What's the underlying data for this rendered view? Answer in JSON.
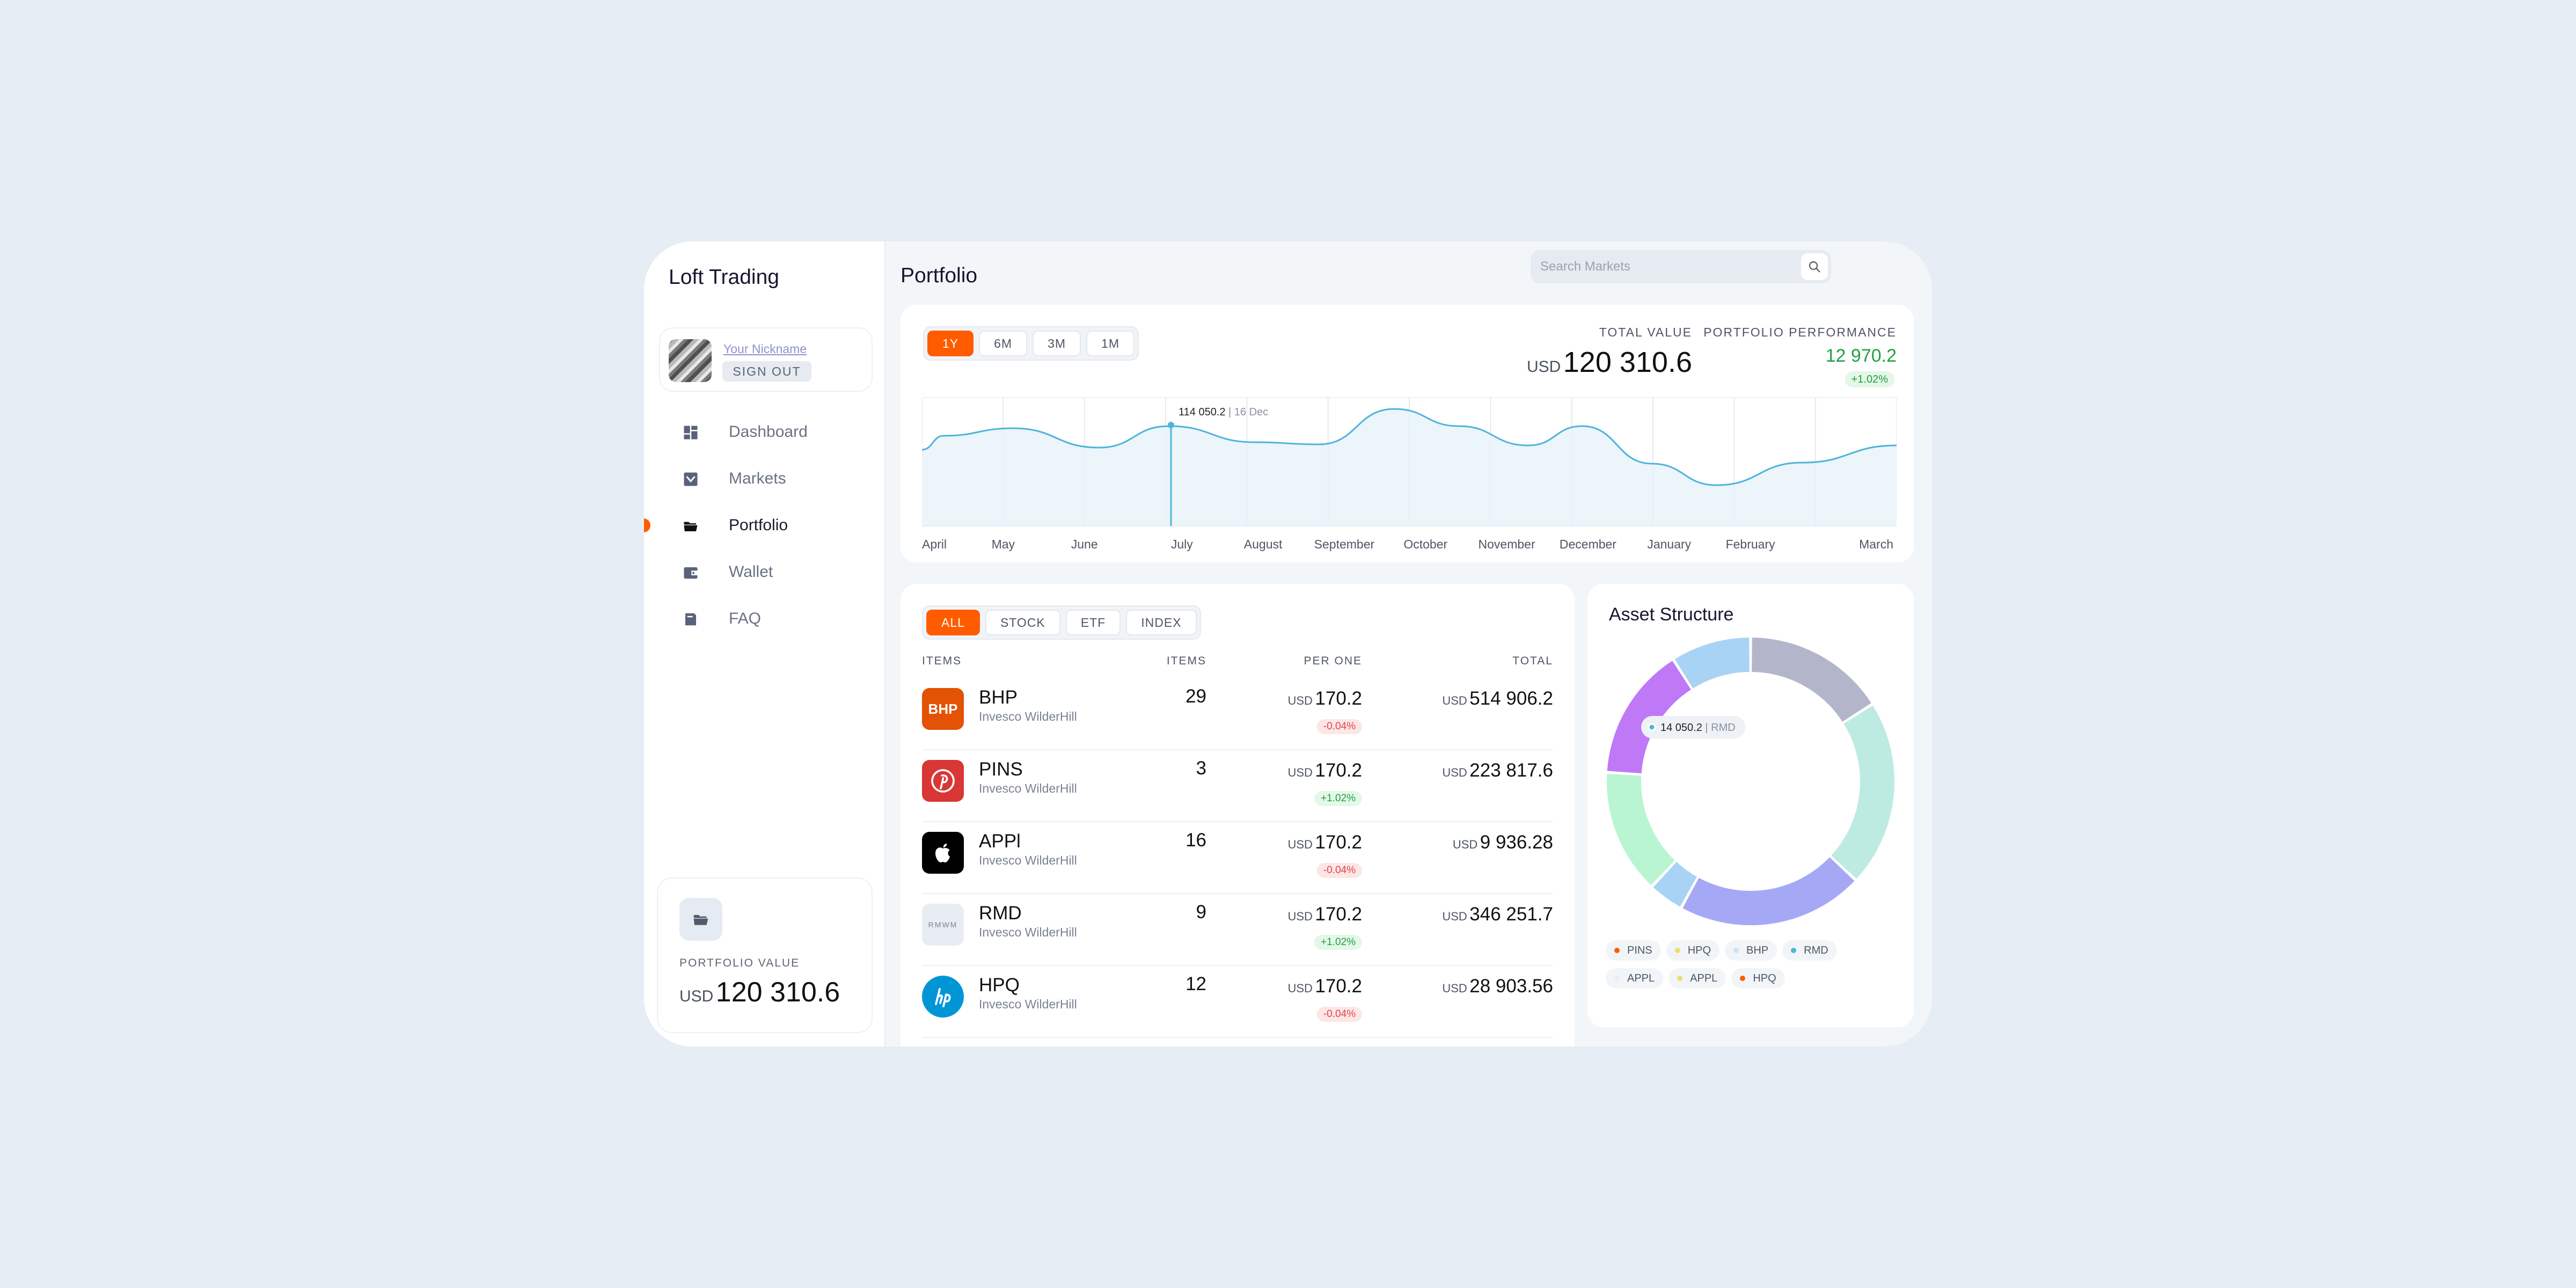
{
  "app": {
    "title": "Loft Trading"
  },
  "profile": {
    "nickname": "Your Nickname",
    "sign_out": "SIGN OUT"
  },
  "nav": {
    "items": [
      {
        "label": "Dashboard",
        "icon": "dashboard-icon"
      },
      {
        "label": "Markets",
        "icon": "markets-icon"
      },
      {
        "label": "Portfolio",
        "icon": "portfolio-icon",
        "active": true
      },
      {
        "label": "Wallet",
        "icon": "wallet-icon"
      },
      {
        "label": "FAQ",
        "icon": "faq-icon"
      }
    ]
  },
  "portfolio_value": {
    "label": "PORTFOLIO VALUE",
    "currency": "USD",
    "value": "120 310.6"
  },
  "page": {
    "title": "Portfolio"
  },
  "search": {
    "placeholder": "Search Markets"
  },
  "period_tabs": {
    "items": [
      "1Y",
      "6M",
      "3M",
      "1M"
    ],
    "active": "1Y"
  },
  "total_value": {
    "label": "TOTAL VALUE",
    "currency": "USD",
    "value": "120 310.6"
  },
  "performance": {
    "label": "PORTFOLIO PERFORMANCE",
    "value": "12 970.2",
    "change": "+1.02%"
  },
  "chart_data": {
    "type": "area",
    "x": [
      "April",
      "May",
      "June",
      "July",
      "August",
      "September",
      "October",
      "November",
      "December",
      "January",
      "February",
      "March"
    ],
    "tooltip": {
      "value": "114 050.2",
      "date": "16 Dec"
    },
    "color": "#4fb3dc",
    "grid": true
  },
  "type_tabs": {
    "items": [
      "ALL",
      "STOCK",
      "ETF",
      "INDEX"
    ],
    "active": "ALL"
  },
  "table": {
    "headers": {
      "items": "ITEMS",
      "count": "ITEMS",
      "per_one": "PER ONE",
      "total": "TOTAL"
    },
    "rows": [
      {
        "symbol": "BHP",
        "name": "Invesco WilderHill",
        "count": "29",
        "currency": "USD",
        "per_one": "170.2",
        "change": "-0.04%",
        "total": "514 906.2",
        "logo_text": "BHP",
        "logo_color": "#e35205"
      },
      {
        "symbol": "PINS",
        "name": "Invesco WilderHill",
        "count": "3",
        "currency": "USD",
        "per_one": "170.2",
        "change": "+1.02%",
        "total": "223 817.6",
        "logo_text": "",
        "logo_color": "#d93636"
      },
      {
        "symbol": "APPl",
        "name": "Invesco WilderHill",
        "count": "16",
        "currency": "USD",
        "per_one": "170.2",
        "change": "-0.04%",
        "total": "9 936.28",
        "logo_text": "",
        "logo_color": "#000000"
      },
      {
        "symbol": "RMD",
        "name": "Invesco WilderHill",
        "count": "9",
        "currency": "USD",
        "per_one": "170.2",
        "change": "+1.02%",
        "total": "346 251.7",
        "logo_text": "RMWM",
        "logo_color": "#e8edf3"
      },
      {
        "symbol": "HPQ",
        "name": "Invesco WilderHill",
        "count": "12",
        "currency": "USD",
        "per_one": "170.2",
        "change": "-0.04%",
        "total": "28 903.56",
        "logo_text": "",
        "logo_color": "#0096d6"
      }
    ]
  },
  "asset_structure": {
    "title": "Asset Structure",
    "tooltip": {
      "value": "14 050.2",
      "label": "RMD"
    },
    "segments": [
      {
        "color": "#b3b6cb",
        "value": 16
      },
      {
        "color": "#bdebe2",
        "value": 21
      },
      {
        "color": "#a5a9f5",
        "value": 21
      },
      {
        "color": "#a9d3f5",
        "value": 4
      },
      {
        "color": "#baf5d2",
        "value": 14
      },
      {
        "color": "#bf79f7",
        "value": 15
      },
      {
        "color": "#a9d3f5",
        "value": 9
      }
    ],
    "legend": [
      {
        "label": "PINS",
        "color": "#ff5c00"
      },
      {
        "label": "HPQ",
        "color": "#e8e06a"
      },
      {
        "label": "BHP",
        "color": "#cde3f7"
      },
      {
        "label": "RMD",
        "color": "#4fb3dc"
      },
      {
        "label": "APPL",
        "color": "#e8edf3"
      },
      {
        "label": "APPL",
        "color": "#e8e06a"
      },
      {
        "label": "HPQ",
        "color": "#ff5c00"
      }
    ]
  },
  "colors": {
    "accent": "#ff5c00",
    "positive": "#21a144",
    "negative": "#e04646",
    "background": "#e6edf4"
  }
}
